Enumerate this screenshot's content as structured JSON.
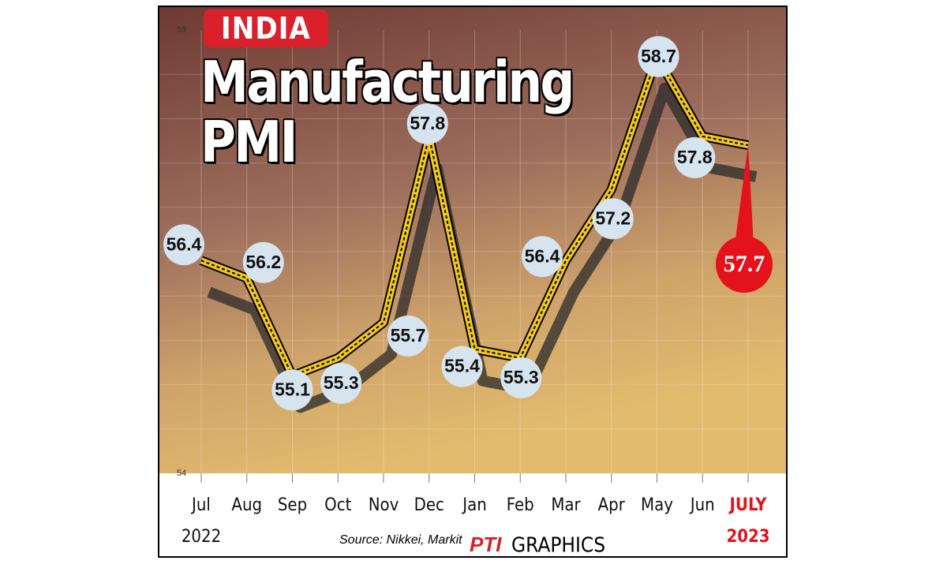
{
  "chart_data": {
    "type": "line",
    "tag": "INDIA",
    "title": "Manufacturing PMI",
    "categories": [
      "Jul",
      "Aug",
      "Sep",
      "Oct",
      "Nov",
      "Dec",
      "Jan",
      "Feb",
      "Mar",
      "Apr",
      "May",
      "Jun",
      "JULY"
    ],
    "year_labels": [
      "2022",
      "2023"
    ],
    "values": [
      56.4,
      56.2,
      55.1,
      55.3,
      55.7,
      57.8,
      55.4,
      55.3,
      56.4,
      57.2,
      58.7,
      57.8,
      57.7
    ],
    "color": "#f2c81a",
    "highlight_color": "#e3121b",
    "ylim": [
      54,
      59
    ],
    "yticks": [
      54,
      59
    ],
    "grid": true,
    "source": "Source: Nikkei, Markit",
    "credit_logo": "PTI",
    "credit_text": "GRAPHICS"
  }
}
